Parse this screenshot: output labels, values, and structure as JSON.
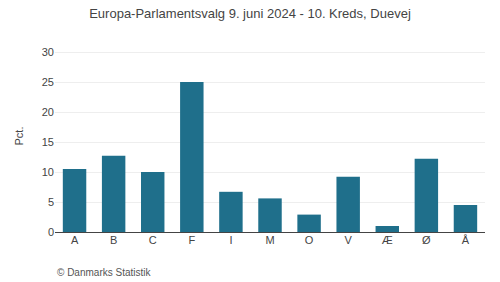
{
  "chart_data": {
    "type": "bar",
    "title": "Europa-Parlamentsvalg 9. juni 2024 - 10. Kreds, Duevej",
    "categories": [
      "A",
      "B",
      "C",
      "F",
      "I",
      "M",
      "O",
      "V",
      "Æ",
      "Ø",
      "Å"
    ],
    "values": [
      10.5,
      12.7,
      10.0,
      25.0,
      6.7,
      5.6,
      2.9,
      9.2,
      1.0,
      12.2,
      4.5
    ],
    "color": "#1f6f8b",
    "ylabel": "Pct.",
    "ylim": [
      0,
      32
    ],
    "yticks": [
      0,
      5,
      10,
      15,
      20,
      25,
      30
    ],
    "grid": true,
    "annotations": [
      "© Danmarks Statistik"
    ]
  }
}
